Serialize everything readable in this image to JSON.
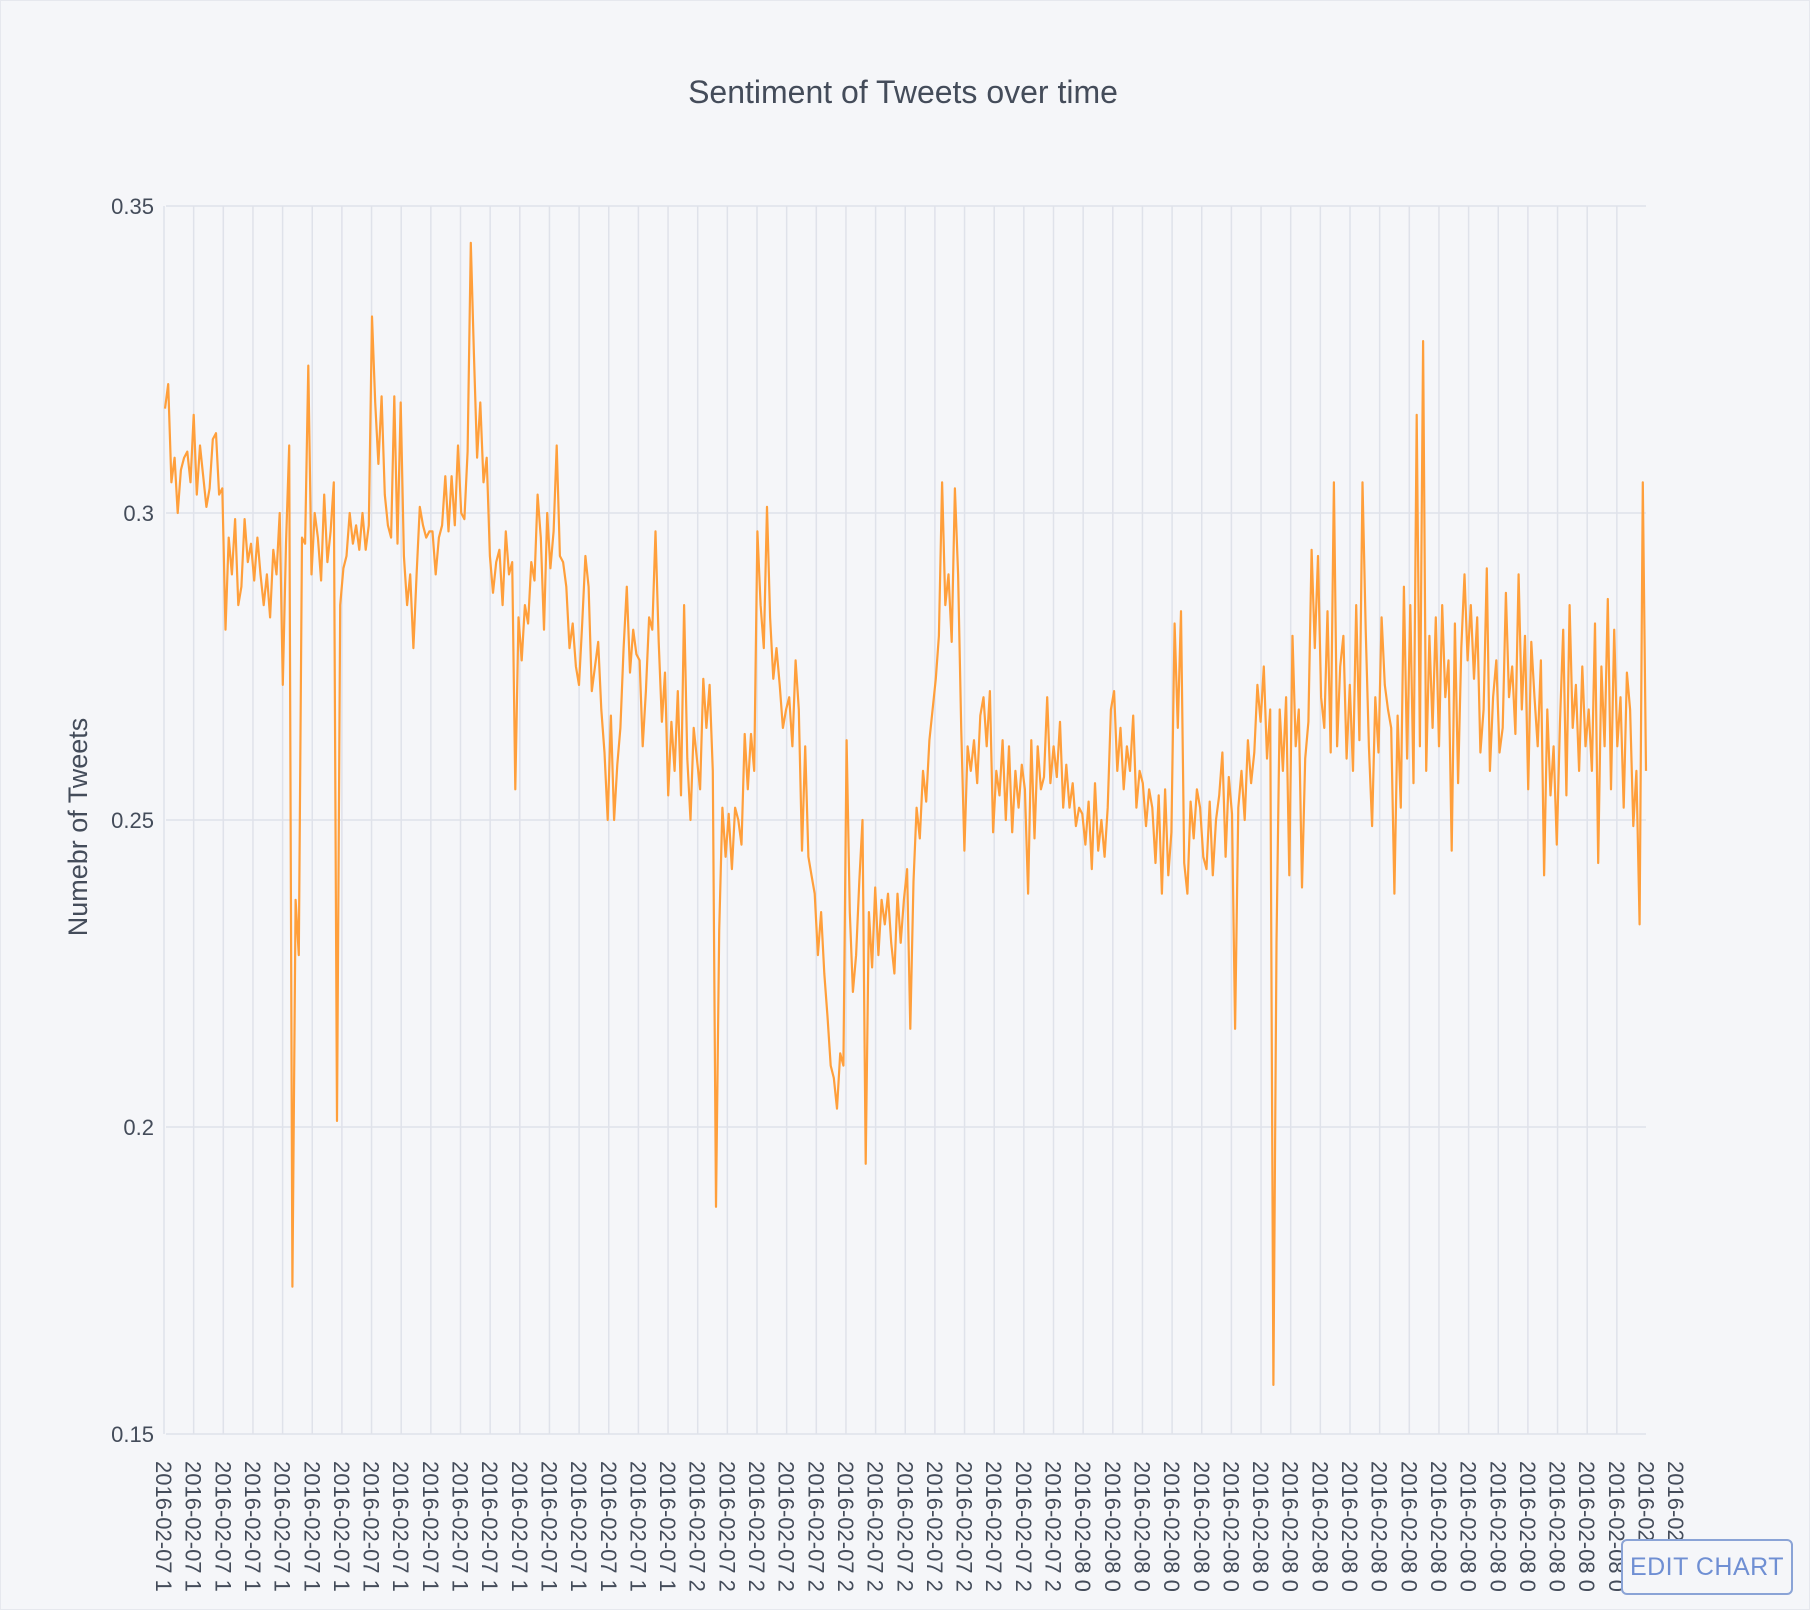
{
  "chart_data": {
    "type": "line",
    "title": "Sentiment of Tweets over time",
    "xlabel": "",
    "ylabel": "Numebr of Tweets",
    "ylim": [
      0.15,
      0.35
    ],
    "y_ticks": [
      0.15,
      0.2,
      0.25,
      0.3,
      0.35
    ],
    "y_tick_labels": [
      "0.15",
      "0.2",
      "0.25",
      "0.3",
      "0.35"
    ],
    "x_tick_labels": [
      "2016-02-07 1",
      "2016-02-07 1",
      "2016-02-07 1",
      "2016-02-07 1",
      "2016-02-07 1",
      "2016-02-07 1",
      "2016-02-07 1",
      "2016-02-07 1",
      "2016-02-07 1",
      "2016-02-07 1",
      "2016-02-07 1",
      "2016-02-07 1",
      "2016-02-07 1",
      "2016-02-07 1",
      "2016-02-07 1",
      "2016-02-07 1",
      "2016-02-07 1",
      "2016-02-07 1",
      "2016-02-07 2",
      "2016-02-07 2",
      "2016-02-07 2",
      "2016-02-07 2",
      "2016-02-07 2",
      "2016-02-07 2",
      "2016-02-07 2",
      "2016-02-07 2",
      "2016-02-07 2",
      "2016-02-07 2",
      "2016-02-07 2",
      "2016-02-07 2",
      "2016-02-07 2",
      "2016-02-08 0",
      "2016-02-08 0",
      "2016-02-08 0",
      "2016-02-08 0",
      "2016-02-08 0",
      "2016-02-08 0",
      "2016-02-08 0",
      "2016-02-08 0",
      "2016-02-08 0",
      "2016-02-08 0",
      "2016-02-08 0",
      "2016-02-08 0",
      "2016-02-08 0",
      "2016-02-08 0",
      "2016-02-08 0",
      "2016-02-08 0",
      "2016-02-08 0",
      "2016-02-08 0",
      "2016-02-08 0",
      "2016-02-08 0",
      "2016-02-"
    ],
    "grid": true,
    "legend": "none",
    "line_color": "#ff9f3b",
    "series": [
      {
        "values": [
          0.317,
          0.321,
          0.305,
          0.309,
          0.3,
          0.307,
          0.309,
          0.31,
          0.305,
          0.316,
          0.303,
          0.311,
          0.306,
          0.301,
          0.304,
          0.312,
          0.313,
          0.303,
          0.304,
          0.281,
          0.296,
          0.29,
          0.299,
          0.285,
          0.288,
          0.299,
          0.292,
          0.295,
          0.289,
          0.296,
          0.29,
          0.285,
          0.29,
          0.283,
          0.294,
          0.29,
          0.3,
          0.272,
          0.295,
          0.311,
          0.174,
          0.237,
          0.228,
          0.296,
          0.295,
          0.324,
          0.29,
          0.3,
          0.296,
          0.289,
          0.303,
          0.292,
          0.297,
          0.305,
          0.201,
          0.285,
          0.291,
          0.293,
          0.3,
          0.295,
          0.298,
          0.294,
          0.3,
          0.294,
          0.298,
          0.332,
          0.318,
          0.308,
          0.319,
          0.303,
          0.298,
          0.296,
          0.319,
          0.295,
          0.318,
          0.293,
          0.285,
          0.29,
          0.278,
          0.29,
          0.301,
          0.298,
          0.296,
          0.297,
          0.297,
          0.29,
          0.296,
          0.298,
          0.306,
          0.297,
          0.306,
          0.298,
          0.311,
          0.3,
          0.299,
          0.31,
          0.344,
          0.326,
          0.309,
          0.318,
          0.305,
          0.309,
          0.293,
          0.287,
          0.292,
          0.294,
          0.285,
          0.297,
          0.29,
          0.292,
          0.255,
          0.283,
          0.276,
          0.285,
          0.282,
          0.292,
          0.289,
          0.303,
          0.296,
          0.281,
          0.3,
          0.291,
          0.297,
          0.311,
          0.293,
          0.292,
          0.288,
          0.278,
          0.282,
          0.275,
          0.272,
          0.282,
          0.293,
          0.288,
          0.271,
          0.275,
          0.279,
          0.268,
          0.261,
          0.25,
          0.267,
          0.25,
          0.259,
          0.265,
          0.278,
          0.288,
          0.274,
          0.281,
          0.277,
          0.276,
          0.262,
          0.271,
          0.283,
          0.281,
          0.297,
          0.279,
          0.266,
          0.274,
          0.254,
          0.266,
          0.258,
          0.271,
          0.254,
          0.285,
          0.26,
          0.25,
          0.265,
          0.26,
          0.255,
          0.273,
          0.265,
          0.272,
          0.258,
          0.187,
          0.232,
          0.252,
          0.244,
          0.251,
          0.242,
          0.252,
          0.25,
          0.246,
          0.264,
          0.255,
          0.264,
          0.258,
          0.297,
          0.285,
          0.278,
          0.301,
          0.283,
          0.273,
          0.278,
          0.272,
          0.265,
          0.268,
          0.27,
          0.262,
          0.276,
          0.268,
          0.245,
          0.262,
          0.244,
          0.241,
          0.238,
          0.228,
          0.235,
          0.225,
          0.218,
          0.21,
          0.208,
          0.203,
          0.212,
          0.21,
          0.263,
          0.235,
          0.222,
          0.228,
          0.24,
          0.25,
          0.194,
          0.235,
          0.226,
          0.239,
          0.228,
          0.237,
          0.233,
          0.238,
          0.23,
          0.225,
          0.238,
          0.23,
          0.237,
          0.242,
          0.216,
          0.24,
          0.252,
          0.247,
          0.258,
          0.253,
          0.263,
          0.268,
          0.273,
          0.28,
          0.305,
          0.285,
          0.29,
          0.279,
          0.304,
          0.29,
          0.265,
          0.245,
          0.262,
          0.258,
          0.263,
          0.256,
          0.267,
          0.27,
          0.262,
          0.271,
          0.248,
          0.258,
          0.254,
          0.263,
          0.25,
          0.262,
          0.248,
          0.258,
          0.252,
          0.259,
          0.255,
          0.238,
          0.263,
          0.247,
          0.262,
          0.255,
          0.257,
          0.27,
          0.256,
          0.262,
          0.257,
          0.266,
          0.252,
          0.259,
          0.252,
          0.256,
          0.249,
          0.252,
          0.251,
          0.246,
          0.253,
          0.242,
          0.256,
          0.245,
          0.25,
          0.244,
          0.252,
          0.268,
          0.271,
          0.258,
          0.265,
          0.255,
          0.262,
          0.258,
          0.267,
          0.252,
          0.258,
          0.256,
          0.249,
          0.255,
          0.252,
          0.243,
          0.254,
          0.238,
          0.255,
          0.241,
          0.248,
          0.282,
          0.265,
          0.284,
          0.243,
          0.238,
          0.253,
          0.247,
          0.255,
          0.252,
          0.244,
          0.242,
          0.253,
          0.241,
          0.25,
          0.254,
          0.261,
          0.244,
          0.257,
          0.251,
          0.216,
          0.252,
          0.258,
          0.25,
          0.263,
          0.256,
          0.261,
          0.272,
          0.266,
          0.275,
          0.26,
          0.268,
          0.158,
          0.23,
          0.268,
          0.258,
          0.27,
          0.241,
          0.28,
          0.262,
          0.268,
          0.239,
          0.26,
          0.266,
          0.294,
          0.278,
          0.293,
          0.27,
          0.265,
          0.284,
          0.261,
          0.305,
          0.262,
          0.275,
          0.28,
          0.26,
          0.272,
          0.258,
          0.285,
          0.263,
          0.305,
          0.281,
          0.262,
          0.249,
          0.27,
          0.261,
          0.283,
          0.272,
          0.268,
          0.265,
          0.238,
          0.267,
          0.252,
          0.288,
          0.26,
          0.285,
          0.256,
          0.316,
          0.262,
          0.328,
          0.258,
          0.28,
          0.265,
          0.283,
          0.262,
          0.285,
          0.27,
          0.276,
          0.245,
          0.282,
          0.256,
          0.278,
          0.29,
          0.276,
          0.285,
          0.273,
          0.283,
          0.261,
          0.268,
          0.291,
          0.258,
          0.27,
          0.276,
          0.261,
          0.265,
          0.287,
          0.27,
          0.275,
          0.264,
          0.29,
          0.268,
          0.28,
          0.255,
          0.279,
          0.27,
          0.262,
          0.276,
          0.241,
          0.268,
          0.254,
          0.262,
          0.246,
          0.266,
          0.281,
          0.254,
          0.285,
          0.265,
          0.272,
          0.258,
          0.275,
          0.262,
          0.268,
          0.258,
          0.282,
          0.243,
          0.275,
          0.262,
          0.286,
          0.255,
          0.281,
          0.262,
          0.27,
          0.252,
          0.274,
          0.268,
          0.249,
          0.258,
          0.233,
          0.305,
          0.258
        ]
      }
    ]
  },
  "ui": {
    "edit_chart_label": "EDIT CHART"
  }
}
